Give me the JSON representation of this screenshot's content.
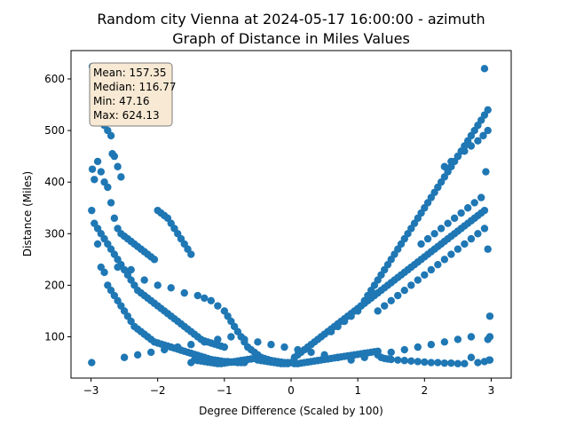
{
  "chart_data": {
    "type": "scatter",
    "title_line1": "Random city Vienna at 2024-05-17 16:00:00  - azimuth",
    "title_line2": "Graph of Distance in Miles Values",
    "xlabel": "Degree Difference (Scaled by 100)",
    "ylabel": "Distance (Miles)",
    "xlim": [
      -3.3,
      3.3
    ],
    "ylim": [
      20,
      655
    ],
    "xticks": [
      -3,
      -2,
      -1,
      0,
      1,
      2,
      3
    ],
    "yticks": [
      100,
      200,
      300,
      400,
      500,
      600
    ],
    "grid": false,
    "marker_color": "#1f77b4",
    "stats": {
      "mean": "Mean: 157.35",
      "median": "Median: 116.77",
      "min": "Min: 47.16",
      "max": "Max: 624.13"
    },
    "points": {
      "x": [
        -2.98,
        -2.97,
        -2.95,
        -2.9,
        -2.85,
        -2.8,
        -2.75,
        -2.7,
        -2.68,
        -2.65,
        -2.6,
        -2.55,
        -2.98,
        -2.95,
        -2.9,
        -2.85,
        -2.8,
        -2.75,
        -2.7,
        -2.65,
        -2.6,
        -2.55,
        -2.5,
        -2.45,
        -2.4,
        -2.35,
        -2.3,
        -2.25,
        -2.2,
        -2.15,
        -2.1,
        -2.05,
        -2.0,
        -1.95,
        -1.9,
        -1.85,
        -1.8,
        -1.75,
        -1.7,
        -1.65,
        -1.6,
        -1.55,
        -1.5,
        -2.99,
        -2.95,
        -2.9,
        -2.85,
        -2.8,
        -2.75,
        -2.7,
        -2.65,
        -2.6,
        -2.55,
        -2.5,
        -2.45,
        -2.4,
        -2.35,
        -2.3,
        -2.25,
        -2.2,
        -2.15,
        -2.1,
        -2.05,
        -2.0,
        -1.95,
        -1.9,
        -1.85,
        -1.8,
        -1.75,
        -1.7,
        -1.65,
        -1.6,
        -1.55,
        -1.5,
        -1.45,
        -1.4,
        -1.35,
        -1.3,
        -1.25,
        -1.2,
        -1.15,
        -1.1,
        -1.05,
        -1.0,
        -2.9,
        -2.85,
        -2.8,
        -2.75,
        -2.7,
        -2.65,
        -2.6,
        -2.55,
        -2.5,
        -2.45,
        -2.4,
        -2.35,
        -2.3,
        -2.25,
        -2.2,
        -2.15,
        -2.1,
        -2.05,
        -2.0,
        -1.95,
        -1.9,
        -1.85,
        -1.8,
        -1.75,
        -1.7,
        -1.65,
        -1.6,
        -1.55,
        -1.5,
        -1.45,
        -1.4,
        -1.35,
        -1.3,
        -1.25,
        -1.2,
        -1.15,
        -1.1,
        -1.05,
        -1.0,
        -0.95,
        -0.9,
        -0.85,
        -0.8,
        -0.75,
        -0.7,
        -2.99,
        -2.6,
        -2.4,
        -2.2,
        -2.0,
        -1.8,
        -1.6,
        -1.4,
        -1.3,
        -1.2,
        -1.1,
        -1.0,
        -0.95,
        -0.9,
        -0.85,
        -0.8,
        -0.75,
        -0.7,
        -0.65,
        -0.6,
        -0.55,
        -0.5,
        -0.45,
        -0.4,
        -0.35,
        -0.3,
        -0.25,
        -0.2,
        -0.15,
        -0.1,
        -0.05,
        0.0,
        -1.5,
        -1.45,
        -1.4,
        -1.35,
        -1.3,
        -1.25,
        -1.2,
        -1.15,
        -1.1,
        -1.05,
        -1.0,
        -0.95,
        -0.9,
        -0.85,
        -0.8,
        -0.75,
        -0.7,
        -0.65,
        -0.6,
        -0.55,
        -0.5,
        -0.45,
        -0.4,
        -0.35,
        -0.3,
        -0.25,
        -0.2,
        -0.15,
        -0.1,
        -0.05,
        0.05,
        0.1,
        0.15,
        0.2,
        0.25,
        0.3,
        0.35,
        0.4,
        0.45,
        0.5,
        0.55,
        0.6,
        0.65,
        0.7,
        0.75,
        0.8,
        0.85,
        0.9,
        0.95,
        1.0,
        1.05,
        1.1,
        1.15,
        1.2,
        1.25,
        1.3,
        1.35,
        1.4,
        1.45,
        1.5,
        1.6,
        1.7,
        1.8,
        1.9,
        2.0,
        2.1,
        2.2,
        2.3,
        2.4,
        2.5,
        2.6,
        2.7,
        2.8,
        2.9,
        2.97,
        0.05,
        0.1,
        0.15,
        0.2,
        0.25,
        0.3,
        0.35,
        0.4,
        0.45,
        0.5,
        0.55,
        0.6,
        0.65,
        0.7,
        0.75,
        0.8,
        0.85,
        0.9,
        0.95,
        1.0,
        1.05,
        1.1,
        1.15,
        1.2,
        1.25,
        1.3,
        1.35,
        1.4,
        1.45,
        1.5,
        1.55,
        1.6,
        1.65,
        1.7,
        1.75,
        1.8,
        1.85,
        1.9,
        1.95,
        2.0,
        2.05,
        2.1,
        2.15,
        2.2,
        2.25,
        2.3,
        2.35,
        2.4,
        2.45,
        2.5,
        2.55,
        2.6,
        2.65,
        2.7,
        2.75,
        2.8,
        2.85,
        2.9,
        2.95,
        2.98,
        0.6,
        0.7,
        0.8,
        0.9,
        1.0,
        1.05,
        1.1,
        1.15,
        1.2,
        1.25,
        1.3,
        1.35,
        1.4,
        1.45,
        1.5,
        1.55,
        1.6,
        1.65,
        1.7,
        1.75,
        1.8,
        1.85,
        1.9,
        1.95,
        2.0,
        2.05,
        2.1,
        2.15,
        2.2,
        2.25,
        2.3,
        2.35,
        2.4,
        2.45,
        2.5,
        2.55,
        2.6,
        2.65,
        2.7,
        2.75,
        2.8,
        2.85,
        2.9,
        2.95,
        2.98,
        1.3,
        1.4,
        1.5,
        1.6,
        1.7,
        1.8,
        1.9,
        2.0,
        2.1,
        2.2,
        2.3,
        2.4,
        2.5,
        2.6,
        2.7,
        2.8,
        2.9,
        2.95,
        1.95,
        2.05,
        2.15,
        2.25,
        2.35,
        2.45,
        2.55,
        2.65,
        2.75,
        2.85,
        2.92,
        2.3,
        2.4,
        2.5,
        2.6,
        2.7,
        2.8,
        2.88,
        2.95,
        2.98,
        -2.5,
        -2.3,
        -2.1,
        -1.9,
        -1.7,
        -1.5,
        -1.3,
        -1.1,
        -0.9,
        -0.7,
        -0.5,
        -0.3,
        -0.1,
        0.1,
        0.3,
        0.5,
        0.7,
        0.9,
        1.1,
        1.3,
        1.5,
        1.7,
        1.9,
        2.1,
        2.3,
        2.5,
        2.7,
        2.9
      ],
      "y": [
        624,
        580,
        545,
        530,
        520,
        510,
        500,
        490,
        455,
        450,
        430,
        410,
        425,
        405,
        440,
        420,
        400,
        390,
        360,
        330,
        310,
        300,
        295,
        290,
        285,
        280,
        275,
        270,
        265,
        260,
        255,
        250,
        345,
        340,
        335,
        330,
        320,
        310,
        300,
        290,
        280,
        270,
        260,
        345,
        320,
        310,
        300,
        290,
        280,
        270,
        260,
        250,
        240,
        230,
        220,
        210,
        200,
        190,
        185,
        180,
        175,
        170,
        165,
        160,
        155,
        150,
        145,
        140,
        135,
        130,
        125,
        120,
        115,
        110,
        105,
        100,
        95,
        92,
        90,
        88,
        86,
        84,
        82,
        80,
        280,
        235,
        225,
        200,
        190,
        180,
        170,
        160,
        150,
        140,
        130,
        120,
        115,
        110,
        105,
        100,
        95,
        90,
        88,
        86,
        84,
        82,
        80,
        78,
        76,
        74,
        72,
        70,
        68,
        66,
        64,
        62,
        60,
        58,
        56,
        55,
        54,
        53,
        52,
        52,
        51,
        51,
        50,
        50,
        50,
        50,
        235,
        230,
        210,
        200,
        195,
        185,
        180,
        175,
        170,
        160,
        150,
        140,
        130,
        120,
        110,
        100,
        90,
        80,
        75,
        70,
        65,
        60,
        58,
        56,
        54,
        53,
        52,
        51,
        50,
        50,
        50,
        50,
        55,
        54,
        53,
        52,
        51,
        50,
        49,
        48,
        48,
        49,
        50,
        51,
        52,
        53,
        54,
        55,
        56,
        57,
        58,
        55,
        54,
        53,
        52,
        51,
        50,
        49,
        48,
        48,
        48,
        48,
        48,
        49,
        50,
        51,
        52,
        53,
        54,
        55,
        56,
        57,
        58,
        59,
        60,
        61,
        62,
        63,
        64,
        65,
        66,
        67,
        68,
        69,
        70,
        71,
        72,
        60,
        58,
        57,
        56,
        55,
        54,
        53,
        52,
        51,
        50,
        50,
        49,
        49,
        48,
        48,
        60,
        50,
        52,
        55,
        60,
        65,
        70,
        75,
        80,
        85,
        90,
        95,
        100,
        105,
        110,
        115,
        120,
        125,
        130,
        135,
        140,
        145,
        150,
        155,
        160,
        165,
        170,
        175,
        180,
        185,
        190,
        195,
        200,
        205,
        210,
        215,
        220,
        225,
        230,
        235,
        240,
        245,
        250,
        255,
        260,
        265,
        270,
        275,
        280,
        285,
        290,
        295,
        300,
        305,
        310,
        315,
        320,
        325,
        330,
        335,
        340,
        345,
        95,
        100,
        110,
        120,
        130,
        140,
        150,
        160,
        170,
        180,
        190,
        200,
        210,
        220,
        230,
        240,
        250,
        260,
        270,
        280,
        290,
        300,
        310,
        320,
        330,
        340,
        350,
        360,
        370,
        380,
        390,
        400,
        410,
        420,
        430,
        440,
        450,
        460,
        470,
        480,
        490,
        500,
        510,
        520,
        530,
        540,
        140,
        150,
        160,
        170,
        180,
        190,
        200,
        210,
        220,
        230,
        240,
        250,
        260,
        270,
        280,
        290,
        300,
        310,
        270,
        280,
        290,
        300,
        310,
        320,
        330,
        340,
        350,
        360,
        370,
        420,
        430,
        440,
        450,
        460,
        470,
        480,
        490,
        500,
        55,
        60,
        65,
        70,
        75,
        80,
        85,
        90,
        95,
        100,
        95,
        90,
        85,
        80,
        75,
        70,
        65,
        60,
        55,
        60,
        65,
        70,
        75,
        80,
        85,
        90,
        95,
        100,
        620
      ]
    }
  }
}
